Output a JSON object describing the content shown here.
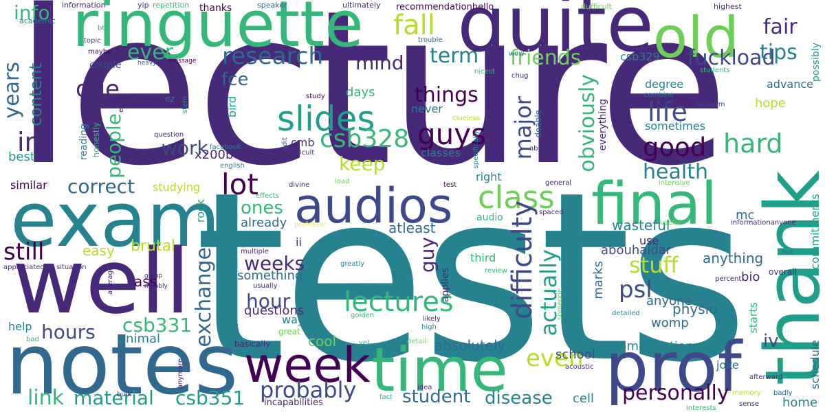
{
  "colors": {
    "background": "#ffffff",
    "palette": [
      "#440154",
      "#482878",
      "#3e4989",
      "#31688e",
      "#26828e",
      "#1f9e89",
      "#35b779",
      "#6ece58",
      "#b5de2b",
      "#fde725"
    ]
  },
  "words": {
    "lecture": "lecture",
    "tests": "tests",
    "notes": "notes",
    "exam": "exam",
    "well": "well",
    "ringuette": "ringuette",
    "quite": "quite",
    "old": "old",
    "thank": "thank",
    "final": "final",
    "prof": "prof",
    "time": "time",
    "week": "week",
    "audios": "audios",
    "slides": "slides",
    "class": "class",
    "lectures": "lectures",
    "research": "research",
    "good": "good",
    "lot": "lot",
    "difficulty": "difficulty",
    "guys": "guys",
    "life": "life",
    "hard": "hard",
    "fair": "fair",
    "fall": "fall",
    "friends": "friends",
    "fuckload": "fuckload",
    "tips": "tips",
    "term": "term",
    "mind": "mind",
    "due": "due",
    "ever": "ever",
    "info": "info",
    "years": "years",
    "content": "content",
    "im": "im",
    "things": "things",
    "major": "major",
    "obviously": "obviously",
    "health": "health",
    "csb328": "csb328",
    "csb329": "csb329",
    "work": "work",
    "keep": "keep",
    "people": "people",
    "correct": "correct",
    "even": "even",
    "actually": "actually",
    "psl": "psl",
    "stuff": "stuff",
    "personally": "personally",
    "probably": "probably",
    "student": "student",
    "disease": "disease",
    "material": "material",
    "csb351": "csb351",
    "csb331": "csb331",
    "hours": "hours",
    "hour": "hour",
    "weeks": "weeks",
    "exchange": "exchange",
    "still": "still",
    "link": "link",
    "ones": "ones",
    "guy": "guy",
    "absolutely": "absolutely",
    "recommendations": "recommendations",
    "physio": "physio",
    "anything": "anything",
    "anyone": "anyone",
    "brutal": "brutal",
    "easy": "easy",
    "already": "already",
    "atleast": "atleast",
    "wasteful": "wasteful",
    "abouhaidar": "abouhaidar",
    "marks": "marks",
    "use": "use",
    "questions": "questions",
    "something": "something",
    "animal": "animal",
    "ass": "ass",
    "cool": "cool",
    "school": "school",
    "iv": "iv",
    "cell": "cell",
    "home": "home",
    "joke": "joke",
    "womp": "womp",
    "bio": "bio",
    "mc": "mc",
    "commitments": "commitments",
    "schedule": "schedule",
    "starts": "starts",
    "possibly": "possibly",
    "hope": "hope",
    "sometimes": "sometimes",
    "everything": "everything",
    "never": "never",
    "classes": "classes",
    "days": "days",
    "fce": "fce",
    "x200b": "x200b",
    "cmb": "cmb",
    "bird": "bird",
    "best": "best",
    "studying": "studying",
    "similar": "similar",
    "rock": "rock",
    "ii": "ii",
    "third": "third",
    "audio": "audio",
    "right": "right",
    "way": "way",
    "help": "help",
    "degree": "degree",
    "advance": "advance",
    "thanks": "thanks",
    "couple": "couple",
    "reading": "reading",
    "honestly": "honestly",
    "yip": "yip",
    "repetition": "repetition",
    "information": "information",
    "speaker": "speaker",
    "ultimately": "ultimately",
    "recommendationhello": "recommendationhello",
    "dufficult": "dufficult",
    "highest": "highest",
    "academic": "academic",
    "btw": "btw",
    "topic": "topic",
    "maybe": "maybe",
    "heavy": "heavy",
    "message": "message",
    "trouble": "trouble",
    "wow": "wow",
    "nicest": "nicest",
    "chug": "chug",
    "students": "students",
    "study": "study",
    "combine": "combine",
    "midterm": "midterm",
    "em": "em",
    "ez": "ez",
    "stem": "stem",
    "clueless": "clueless",
    "doable": "doable",
    "question": "question",
    "facebook": "facebook",
    "edit": "edit",
    "difficult": "difficult",
    "specifically": "specifically",
    "able": "able",
    "english": "english",
    "divine": "divine",
    "load": "load",
    "test": "test",
    "general": "general",
    "intensive": "intensive",
    "effects": "effects",
    "professor": "professor",
    "spaced": "spaced",
    "useful": "useful",
    "informationanyone": "informationanyone",
    "multiple": "multiple",
    "appreciated": "appreciated",
    "situation": "situation",
    "greatly": "greatly",
    "usually": "usually",
    "group": "group",
    "notably": "notably",
    "average": "average",
    "applies": "applies",
    "review": "review",
    "percent": "percent",
    "overall": "overall",
    "hall": "hall",
    "someone": "someone",
    "detailed": "detailed",
    "golden": "golden",
    "likely": "likely",
    "high": "high",
    "great": "great",
    "bad": "bad",
    "basically": "basically",
    "yet": "yet",
    "detail": "detail",
    "acoustic": "acoustic",
    "afterward": "afterward",
    "memory": "memory",
    "badly": "badly",
    "anymore": "anymore",
    "bulk": "bulk",
    "idea": "idea",
    "fact": "fact",
    "incapabilities": "incapabilities",
    "interests": "interests",
    "sense": "sense"
  }
}
